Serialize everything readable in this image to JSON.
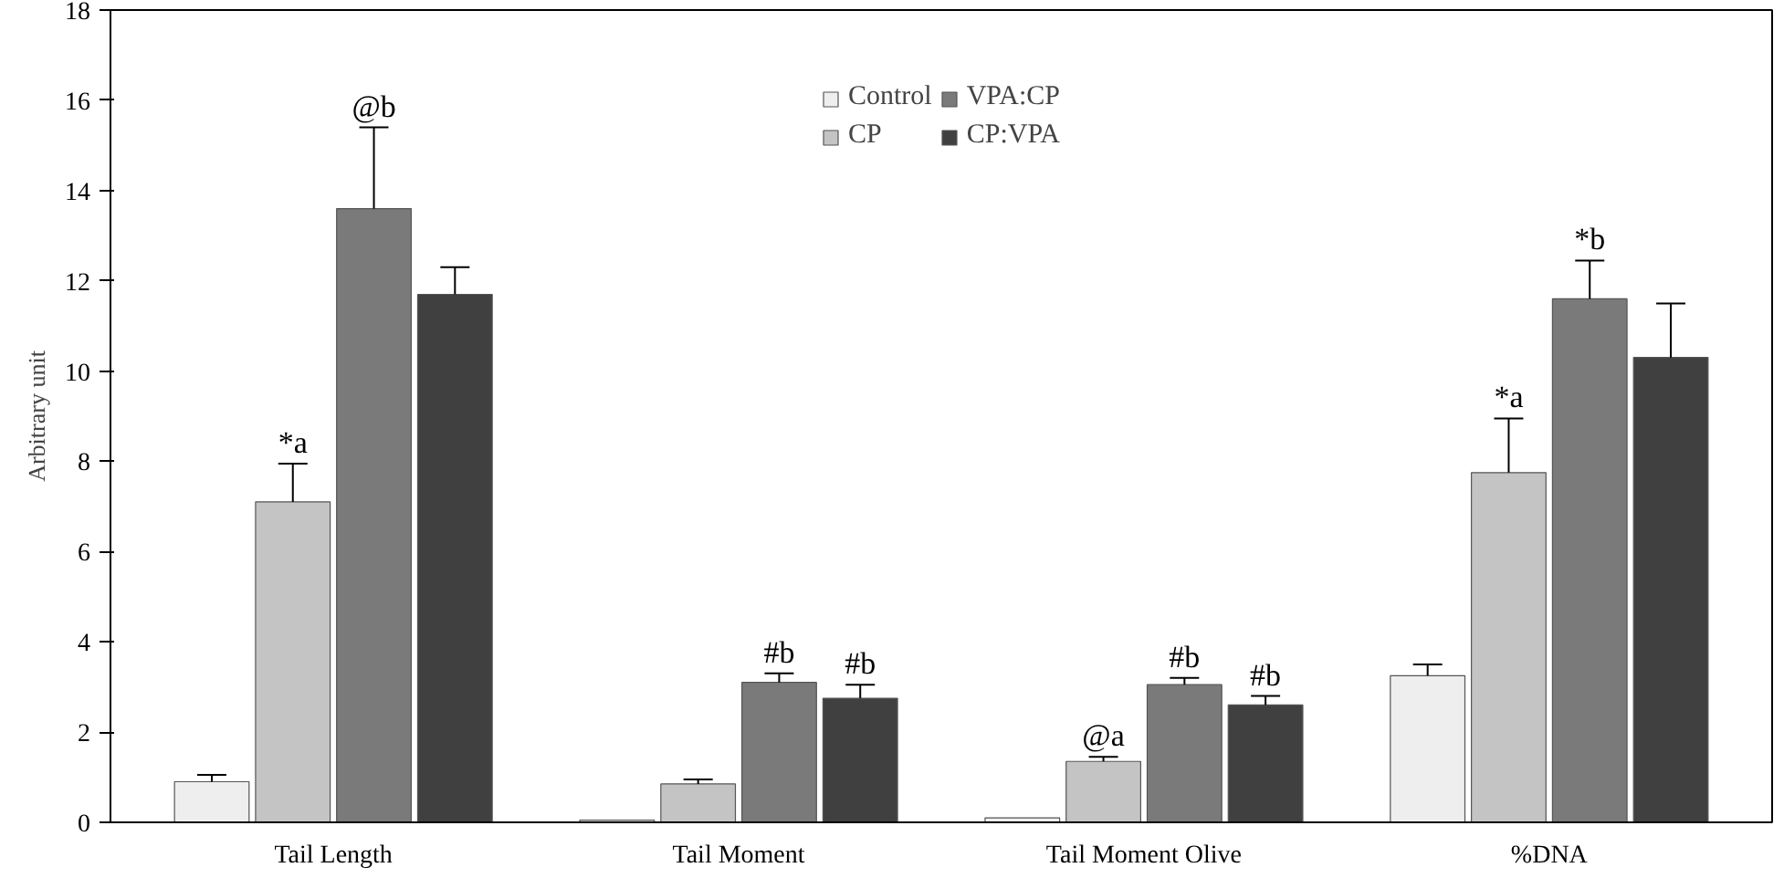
{
  "chart_data": {
    "type": "bar",
    "ylabel": "Arbitrary unit",
    "categories": [
      "Tail Length",
      "Tail Moment",
      "Tail Moment Olive",
      "%DNA"
    ],
    "series": [
      {
        "name": "Control",
        "color": "#eeeeee",
        "values": [
          0.9,
          0.05,
          0.1,
          3.25
        ],
        "errors": [
          0.15,
          null,
          null,
          0.25
        ]
      },
      {
        "name": "CP",
        "color": "#c4c4c4",
        "values": [
          7.1,
          0.85,
          1.35,
          7.75
        ],
        "errors": [
          0.85,
          0.1,
          0.1,
          1.2
        ],
        "value_labels": [
          "*a",
          null,
          "@a",
          "*a"
        ]
      },
      {
        "name": "VPA:CP",
        "color": "#7a7a7a",
        "values": [
          13.6,
          3.1,
          3.05,
          11.6
        ],
        "errors": [
          1.8,
          0.2,
          0.15,
          0.85
        ],
        "value_labels": [
          "@b",
          "#b",
          "#b",
          "*b"
        ]
      },
      {
        "name": "CP:VPA",
        "color": "#404040",
        "values": [
          11.7,
          2.75,
          2.6,
          10.3
        ],
        "errors": [
          0.6,
          0.3,
          0.2,
          1.2
        ],
        "value_labels": [
          null,
          "#b",
          "#b",
          null
        ]
      }
    ],
    "ylim": [
      0,
      18
    ],
    "yticks": [
      0,
      2,
      4,
      6,
      8,
      10,
      12,
      14,
      16,
      18
    ],
    "grid": false,
    "legend": "top"
  }
}
